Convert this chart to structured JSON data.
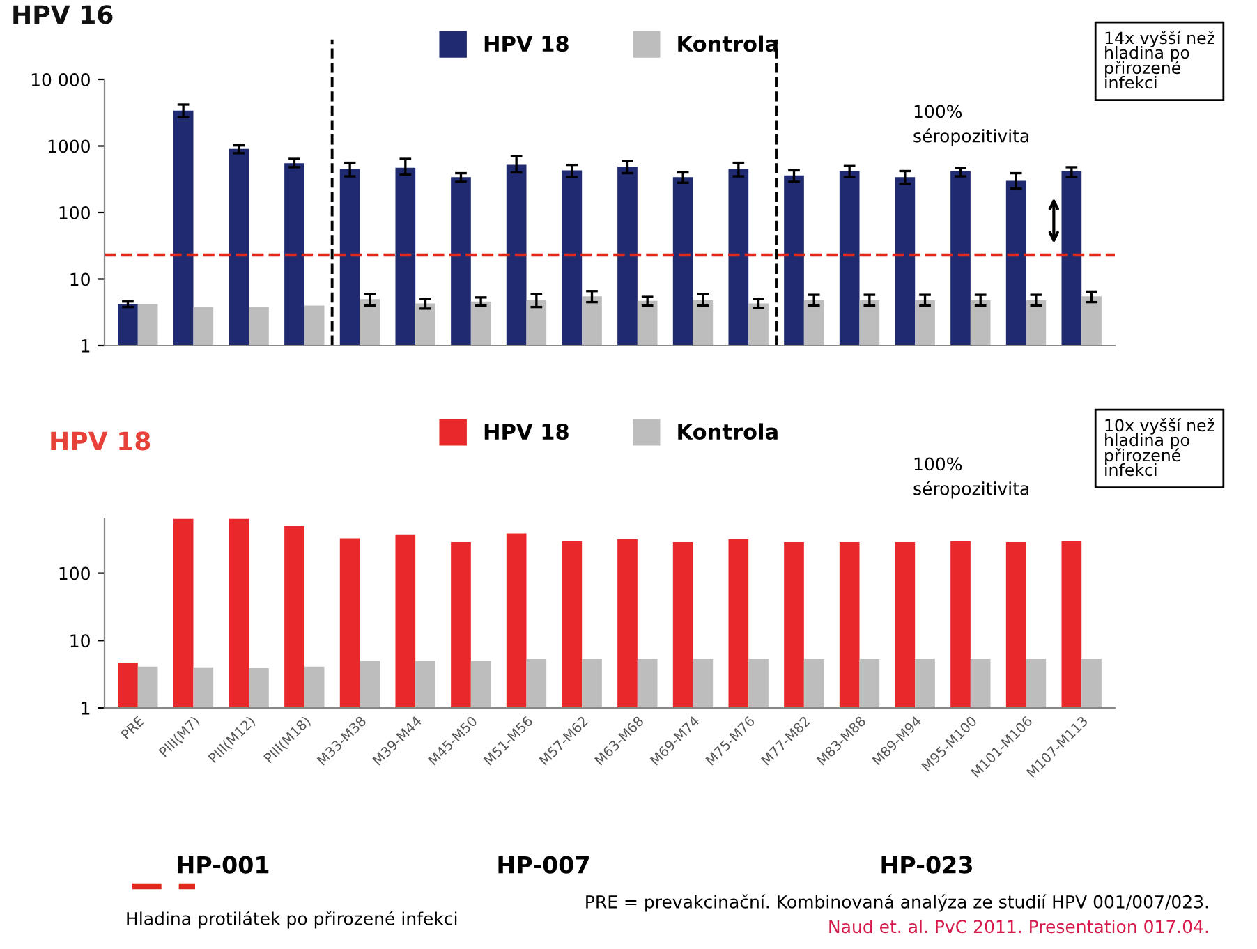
{
  "chart_data": [
    {
      "type": "bar",
      "title": "HPV 16",
      "log": true,
      "tick_labels": "y",
      "legend": "top",
      "grid": false,
      "categories": [
        null,
        null,
        null,
        null,
        null,
        null,
        null,
        null,
        null,
        null,
        null,
        null,
        null,
        null,
        null,
        null,
        null,
        null
      ],
      "ylim": [
        1,
        10000
      ],
      "yticks": [
        1,
        10,
        100,
        1000,
        {
          "value": 10000,
          "label": "10 000"
        }
      ],
      "series": [
        {
          "name": "HPV 18",
          "color": "#1f2a70",
          "values": [
            4.2,
            3400,
            900,
            550,
            450,
            470,
            340,
            520,
            430,
            490,
            340,
            450,
            360,
            420,
            340,
            420,
            300,
            420
          ],
          "errors": [
            [
              3.8,
              4.6
            ],
            [
              2700,
              4200
            ],
            [
              780,
              1020
            ],
            [
              480,
              640
            ],
            [
              350,
              560
            ],
            [
              370,
              640
            ],
            [
              290,
              390
            ],
            [
              400,
              700
            ],
            [
              340,
              520
            ],
            [
              390,
              600
            ],
            [
              280,
              400
            ],
            [
              350,
              560
            ],
            [
              290,
              430
            ],
            [
              340,
              500
            ],
            [
              270,
              420
            ],
            [
              350,
              470
            ],
            [
              230,
              390
            ],
            [
              340,
              480
            ]
          ]
        },
        {
          "name": "Kontrola",
          "color": "#bdbdbd",
          "values": [
            4.2,
            3.8,
            3.8,
            4.0,
            5.0,
            4.3,
            4.6,
            4.8,
            5.5,
            4.7,
            4.9,
            4.3,
            4.8,
            4.8,
            4.8,
            4.8,
            4.8,
            5.5
          ],
          "errors": [
            null,
            null,
            null,
            null,
            [
              4,
              6
            ],
            [
              3.6,
              5
            ],
            [
              4,
              5.3
            ],
            [
              3.8,
              6
            ],
            [
              4.5,
              6.6
            ],
            [
              4,
              5.4
            ],
            [
              4,
              6
            ],
            [
              3.7,
              5
            ],
            [
              4,
              5.8
            ],
            [
              4,
              5.8
            ],
            [
              4,
              5.8
            ],
            [
              4,
              5.8
            ],
            [
              4,
              5.8
            ],
            [
              4.5,
              6.5
            ]
          ]
        }
      ],
      "ref_lines": [
        {
          "axis": "y",
          "value": 23,
          "color": "#e0281e",
          "line_style": "dashed"
        }
      ],
      "annotations": [
        "100%\nséropozitivita",
        "14x vyšší než\nhladina po\npřirozené\ninfekci",
        "Hladina protilátek po přirozené infekci"
      ]
    },
    {
      "type": "bar",
      "title": "HPV 18",
      "log": true,
      "legend": "top",
      "grid": false,
      "categories": [
        "PRE",
        "PIII(M7)",
        "PIII(M12)",
        "PIII(M18)",
        "M33-M38",
        "M39-M44",
        "M45-M50",
        "M51-M56",
        "M57-M62",
        "M63-M68",
        "M69-M74",
        "M75-M76",
        "M77-M82",
        "M83-M88",
        "M89-M94",
        "M95-M100",
        "M101-M106",
        "M107-M113"
      ],
      "ylim": [
        1,
        650
      ],
      "yticks": [
        1,
        10,
        100
      ],
      "series": [
        {
          "name": "HPV 18",
          "color": "#e8282b",
          "values": [
            4.7,
            640,
            640,
            500,
            330,
            370,
            290,
            390,
            300,
            320,
            290,
            320,
            290,
            290,
            290,
            300,
            290,
            300
          ]
        },
        {
          "name": "Kontrola",
          "color": "#bdbdbd",
          "values": [
            4.1,
            4.0,
            3.9,
            4.1,
            5.0,
            5.0,
            5.0,
            5.3,
            5.3,
            5.3,
            5.3,
            5.3,
            5.3,
            5.3,
            5.3,
            5.3,
            5.3,
            5.3
          ]
        }
      ],
      "annotations": [
        "100%\nséropozitivita",
        "10x vyšší než\nhladina po\npřirozené\ninfekci",
        "HP-001",
        "HP-007",
        "HP-023",
        "PRE = prevakcinační. Kombinovaná analýza ze studií HPV 001/007/023.",
        "Naud et. al. PvC 2011. Presentation 017.04."
      ]
    }
  ]
}
